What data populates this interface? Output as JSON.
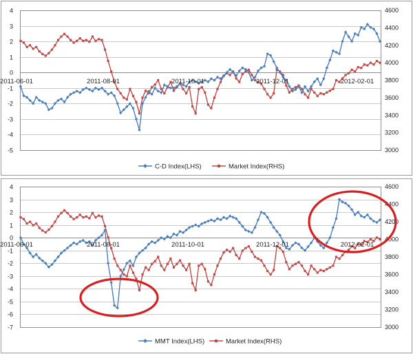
{
  "chart_data": [
    {
      "type": "line",
      "x_labels": [
        "2011-06-01",
        "2011-08-01",
        "2011-10-01",
        "2011-12-01",
        "2012-02-01"
      ],
      "y_left": {
        "min": -5,
        "max": 4,
        "ticks": [
          "4",
          "3",
          "2",
          "1",
          "0",
          "-1",
          "-2",
          "-3",
          "-4",
          "-5"
        ]
      },
      "y_right": {
        "min": 3000,
        "max": 4600,
        "ticks": [
          "4600",
          "4400",
          "4200",
          "4000",
          "3800",
          "3600",
          "3400",
          "3200",
          "3000"
        ]
      },
      "grid": true,
      "legend_position": "bottom",
      "colors": {
        "cd": "#4a7ebb",
        "market": "#be4b48"
      },
      "series": [
        {
          "name": "C-D Index(LHS)",
          "axis": "left",
          "values": [
            -0.9,
            -1.5,
            -1.6,
            -1.8,
            -2.0,
            -1.6,
            -1.8,
            -1.9,
            -2.0,
            -2.4,
            -2.3,
            -2.0,
            -1.8,
            -1.7,
            -1.9,
            -1.6,
            -1.4,
            -1.3,
            -1.2,
            -1.3,
            -1.1,
            -1.0,
            -1.1,
            -1.2,
            -1.0,
            -1.1,
            -1.0,
            -1.2,
            -1.4,
            -1.3,
            -1.5,
            -2.0,
            -2.6,
            -2.4,
            -2.2,
            -2.0,
            -2.3,
            -3.0,
            -3.7,
            -2.0,
            -1.6,
            -1.2,
            -1.4,
            -1.0,
            -1.2,
            -1.3,
            -0.8,
            -0.9,
            -1.0,
            -1.0,
            -0.9,
            -0.7,
            -0.8,
            -0.9,
            -0.6,
            -0.5,
            -0.6,
            -0.7,
            -0.6,
            -0.5,
            -0.6,
            -0.4,
            -0.5,
            -0.3,
            -0.4,
            -0.2,
            0.0,
            0.2,
            0.0,
            -0.2,
            0.1,
            0.3,
            0.2,
            0.0,
            -0.5,
            -0.3,
            0.1,
            0.3,
            0.4,
            1.2,
            1.1,
            0.7,
            0.3,
            0.0,
            -0.3,
            -0.5,
            -0.9,
            -1.2,
            -1.1,
            -0.9,
            -1.3,
            -0.9,
            -1.2,
            -0.9,
            -0.6,
            -0.4,
            -0.8,
            -0.4,
            0.3,
            0.8,
            1.4,
            1.3,
            1.2,
            2.0,
            2.6,
            2.3,
            2.0,
            2.5,
            2.4,
            2.9,
            2.8,
            3.1,
            2.9,
            2.8,
            2.5,
            2.0
          ]
        },
        {
          "name": "Market Index(RHS)",
          "axis": "right",
          "values": [
            4250,
            4230,
            4180,
            4200,
            4160,
            4180,
            4130,
            4100,
            4080,
            4110,
            4150,
            4200,
            4260,
            4300,
            4330,
            4300,
            4260,
            4230,
            4250,
            4280,
            4250,
            4260,
            4240,
            4300,
            4250,
            4270,
            4260,
            4150,
            4020,
            3900,
            3780,
            3700,
            3650,
            3600,
            3580,
            3700,
            3620,
            3550,
            3420,
            3600,
            3680,
            3650,
            3720,
            3750,
            3800,
            3700,
            3650,
            3720,
            3780,
            3680,
            3720,
            3760,
            3700,
            3650,
            3720,
            3500,
            3420,
            3700,
            3720,
            3660,
            3520,
            3480,
            3600,
            3700,
            3780,
            3850,
            3880,
            3860,
            3900,
            3820,
            3780,
            3870,
            3900,
            3920,
            3860,
            3800,
            3780,
            3760,
            3700,
            3640,
            3600,
            3650,
            3920,
            3900,
            3860,
            3740,
            3660,
            3700,
            3720,
            3740,
            3700,
            3640,
            3600,
            3700,
            3660,
            3620,
            3650,
            3640,
            3660,
            3680,
            3700,
            3800,
            3780,
            3820,
            3860,
            3880,
            3920,
            3900,
            3950,
            3940,
            3980,
            3970,
            4000,
            3980,
            4020,
            4000
          ]
        }
      ]
    },
    {
      "type": "line",
      "x_labels": [
        "2011-06-01",
        "2011-08-01",
        "2011-10-01",
        "2011-12-01",
        "2012-02-01"
      ],
      "y_left": {
        "min": -7,
        "max": 4,
        "ticks": [
          "4",
          "3",
          "2",
          "1",
          "0",
          "-1",
          "-2",
          "-3",
          "-4",
          "-5",
          "-6",
          "-7"
        ]
      },
      "y_right": {
        "min": 3000,
        "max": 4600,
        "ticks": [
          "4600",
          "4400",
          "4200",
          "4000",
          "3800",
          "3600",
          "3400",
          "3200",
          "3000"
        ]
      },
      "grid": true,
      "legend_position": "bottom",
      "colors": {
        "mmt": "#4a7ebb",
        "market": "#be4b48",
        "highlight": "#d42020"
      },
      "series": [
        {
          "name": "MMT Index(LHS)",
          "axis": "left",
          "values": [
            0.0,
            -0.5,
            -0.8,
            -1.2,
            -1.5,
            -1.3,
            -1.6,
            -1.8,
            -2.0,
            -2.3,
            -2.1,
            -1.8,
            -1.5,
            -1.2,
            -1.0,
            -0.8,
            -0.6,
            -0.4,
            -0.5,
            -0.3,
            -0.2,
            -0.4,
            -0.3,
            -0.6,
            -0.2,
            0.0,
            0.2,
            0.6,
            -2.0,
            -3.5,
            -5.3,
            -5.5,
            -3.0,
            -2.5,
            -2.0,
            -1.8,
            -2.2,
            -1.5,
            -1.2,
            -1.0,
            -0.8,
            -0.5,
            -0.3,
            -0.4,
            -0.2,
            0.0,
            -0.1,
            0.1,
            0.0,
            0.3,
            0.2,
            0.5,
            0.4,
            0.6,
            0.8,
            0.9,
            1.0,
            0.9,
            1.1,
            1.2,
            1.3,
            1.4,
            1.3,
            1.5,
            1.4,
            1.6,
            1.5,
            1.7,
            1.6,
            1.5,
            1.2,
            0.9,
            0.6,
            0.5,
            0.4,
            0.8,
            1.4,
            2.0,
            1.9,
            1.6,
            1.2,
            0.8,
            0.5,
            0.2,
            -0.3,
            -0.8,
            -0.9,
            -0.6,
            -0.4,
            -0.5,
            -0.8,
            -1.0,
            -0.7,
            -0.4,
            0.0,
            -0.3,
            -0.6,
            -0.8,
            -0.4,
            0.0,
            0.8,
            1.5,
            3.0,
            2.8,
            2.7,
            2.5,
            2.2,
            1.8,
            2.0,
            1.7,
            1.6,
            1.8,
            1.5,
            1.3,
            1.2,
            1.4
          ]
        },
        {
          "name": "Market Index(RHS)",
          "axis": "right",
          "values": [
            4250,
            4230,
            4180,
            4200,
            4160,
            4180,
            4130,
            4100,
            4080,
            4110,
            4150,
            4200,
            4260,
            4300,
            4330,
            4300,
            4260,
            4230,
            4250,
            4280,
            4250,
            4260,
            4240,
            4300,
            4250,
            4270,
            4260,
            4150,
            4020,
            3900,
            3780,
            3700,
            3650,
            3600,
            3580,
            3700,
            3620,
            3550,
            3420,
            3600,
            3680,
            3650,
            3720,
            3750,
            3800,
            3700,
            3650,
            3720,
            3780,
            3680,
            3720,
            3760,
            3700,
            3650,
            3720,
            3500,
            3420,
            3700,
            3720,
            3660,
            3520,
            3480,
            3600,
            3700,
            3780,
            3850,
            3880,
            3860,
            3900,
            3820,
            3780,
            3870,
            3900,
            3920,
            3860,
            3800,
            3780,
            3760,
            3700,
            3640,
            3600,
            3650,
            3920,
            3900,
            3860,
            3740,
            3660,
            3700,
            3720,
            3740,
            3700,
            3640,
            3600,
            3700,
            3660,
            3620,
            3650,
            3640,
            3660,
            3680,
            3700,
            3800,
            3780,
            3820,
            3860,
            3880,
            3920,
            3900,
            3950,
            3940,
            3980,
            3970,
            4000,
            3980,
            4020,
            4000
          ]
        }
      ],
      "annotations": [
        {
          "shape": "ellipse",
          "around": "MMT Index(LHS) low near 2011-08-01",
          "color": "#d42020"
        },
        {
          "shape": "ellipse",
          "around": "MMT Index(LHS) peak near 2012-02-01",
          "color": "#d42020"
        }
      ]
    }
  ]
}
